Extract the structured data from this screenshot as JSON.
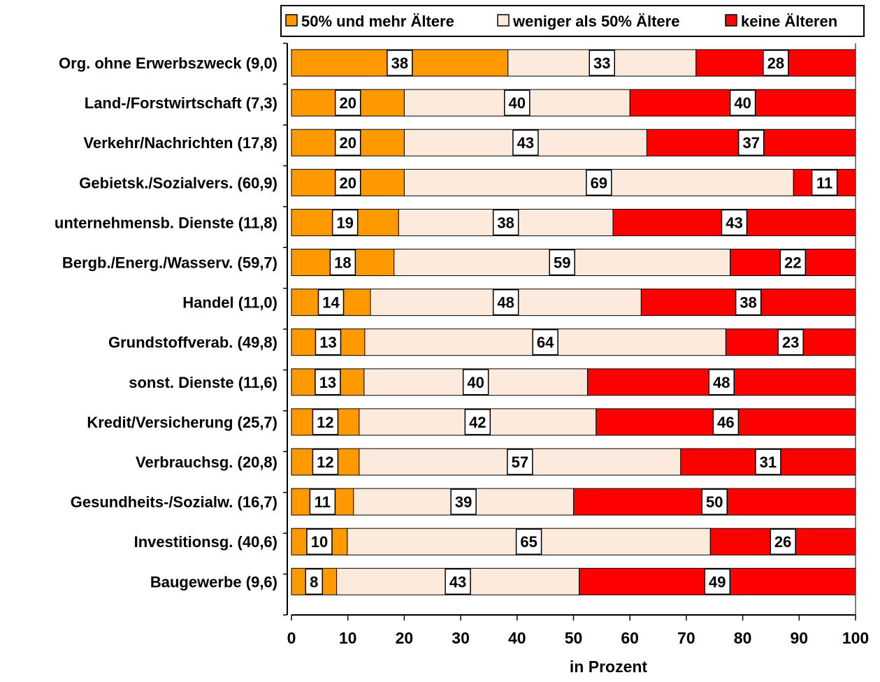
{
  "chart_data": {
    "type": "bar",
    "orientation": "horizontal",
    "stacked": true,
    "categories": [
      "Org. ohne Erwerbszweck (9,0)",
      "Land-/Forstwirtschaft (7,3)",
      "Verkehr/Nachrichten (17,8)",
      "Gebietsk./Sozialvers. (60,9)",
      "unternehmensb. Dienste (11,8)",
      "Bergb./Energ./Wasserv. (59,7)",
      "Handel (11,0)",
      "Grundstoffverab. (49,8)",
      "sonst. Dienste (11,6)",
      "Kredit/Versicherung (25,7)",
      "Verbrauchsg. (20,8)",
      "Gesundheits-/Sozialw. (16,7)",
      "Investitionsg. (40,6)",
      "Baugewerbe (9,6)"
    ],
    "series": [
      {
        "name": "50% und mehr Ältere",
        "color": "#FF9900",
        "values": [
          38,
          20,
          20,
          20,
          19,
          18,
          14,
          13,
          13,
          12,
          12,
          11,
          10,
          8
        ]
      },
      {
        "name": "weniger als 50% Ältere",
        "color": "#FCEBDD",
        "values": [
          33,
          40,
          43,
          69,
          38,
          59,
          48,
          64,
          40,
          42,
          57,
          39,
          65,
          43
        ]
      },
      {
        "name": "keine Älteren",
        "color": "#FF0000",
        "values": [
          28,
          40,
          37,
          11,
          43,
          22,
          38,
          23,
          48,
          46,
          31,
          50,
          26,
          49
        ]
      }
    ],
    "xlabel": "in Prozent",
    "xlim": [
      0,
      100
    ],
    "xticks": [
      "0",
      "10",
      "20",
      "30",
      "40",
      "50",
      "60",
      "70",
      "80",
      "90",
      "100"
    ],
    "legend": "top",
    "grid": false
  }
}
